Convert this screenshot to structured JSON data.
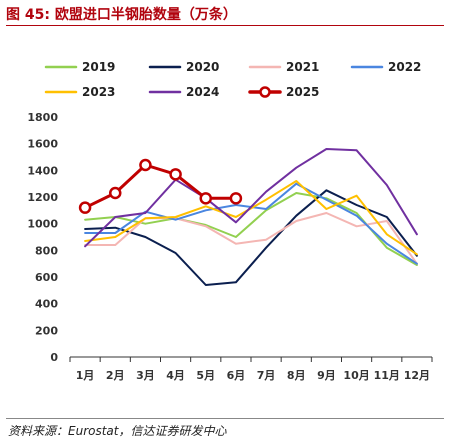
{
  "figure": {
    "title": "图 45:  欧盟进口半钢胎数量（万条）",
    "source": "资料来源：Eurostat，信达证券研发中心"
  },
  "chart_data": {
    "type": "line",
    "title": "图 45:  欧盟进口半钢胎数量（万条）",
    "xlabel": "",
    "ylabel": "",
    "ylim": [
      0,
      1800
    ],
    "yticks": [
      "0",
      "200",
      "400",
      "600",
      "800",
      "1000",
      "1200",
      "1400",
      "1600",
      "1800"
    ],
    "categories": [
      "1月",
      "2月",
      "3月",
      "4月",
      "5月",
      "6月",
      "7月",
      "8月",
      "9月",
      "10月",
      "11月",
      "12月"
    ],
    "grid": false,
    "legend": "top",
    "series": [
      {
        "name": "2019",
        "color": "#92d050",
        "width": 2,
        "marker": false,
        "values": [
          1030,
          1050,
          1000,
          1040,
          990,
          900,
          1100,
          1230,
          1190,
          1080,
          820,
          690
        ]
      },
      {
        "name": "2020",
        "color": "#0b1f4f",
        "width": 2,
        "marker": false,
        "values": [
          960,
          970,
          900,
          780,
          540,
          560,
          820,
          1060,
          1250,
          1140,
          1050,
          760
        ]
      },
      {
        "name": "2021",
        "color": "#f4b6b3",
        "width": 2,
        "marker": false,
        "values": [
          840,
          840,
          1040,
          1040,
          980,
          850,
          880,
          1020,
          1080,
          980,
          1020,
          700
        ]
      },
      {
        "name": "2022",
        "color": "#4a86e0",
        "width": 2,
        "marker": false,
        "values": [
          930,
          930,
          1090,
          1030,
          1100,
          1140,
          1110,
          1300,
          1180,
          1060,
          850,
          700
        ]
      },
      {
        "name": "2023",
        "color": "#ffc000",
        "width": 2,
        "marker": false,
        "values": [
          870,
          900,
          1040,
          1050,
          1130,
          1050,
          1180,
          1320,
          1110,
          1210,
          920,
          770
        ]
      },
      {
        "name": "2024",
        "color": "#7030a0",
        "width": 2,
        "marker": false,
        "values": [
          830,
          1050,
          1080,
          1330,
          1190,
          1010,
          1240,
          1420,
          1560,
          1550,
          1290,
          920
        ]
      },
      {
        "name": "2025",
        "color": "#c00000",
        "width": 3,
        "marker": true,
        "values": [
          1120,
          1230,
          1440,
          1370,
          1190,
          1190,
          null,
          null,
          null,
          null,
          null,
          null
        ]
      }
    ]
  }
}
